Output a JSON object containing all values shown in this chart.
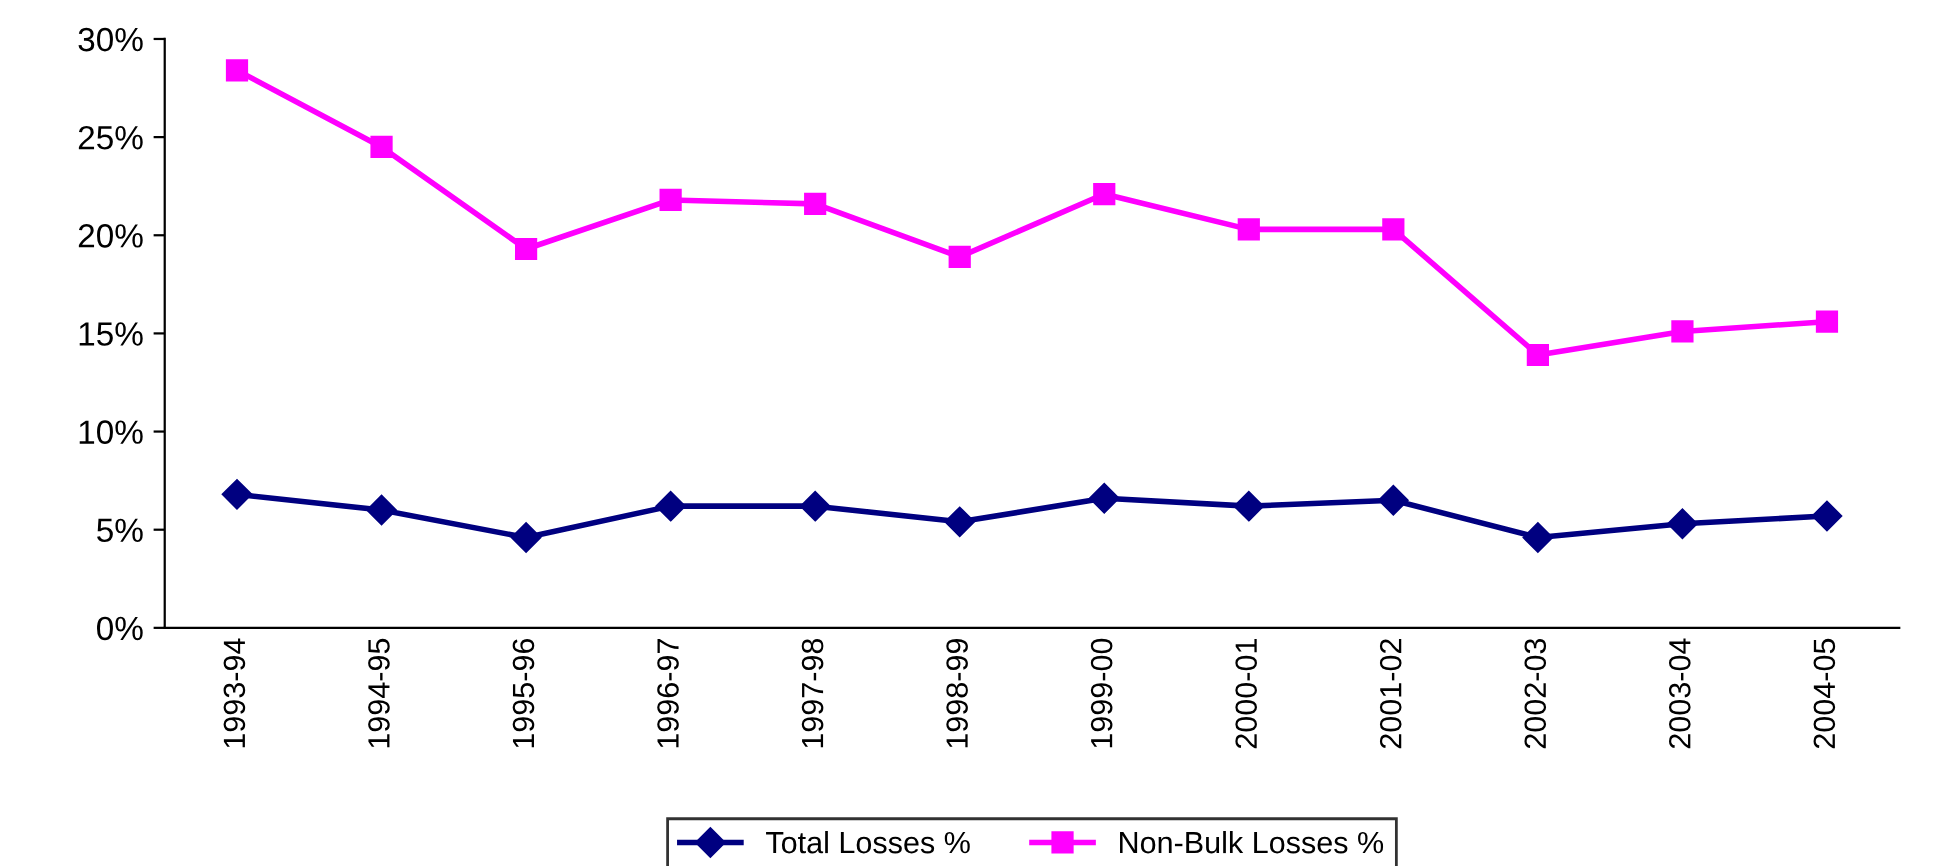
{
  "chart_data": {
    "type": "line",
    "categories": [
      "1993-94",
      "1994-95",
      "1995-96",
      "1996-97",
      "1997-98",
      "1998-99",
      "1999-00",
      "2000-01",
      "2001-02",
      "2002-03",
      "2003-04",
      "2004-05"
    ],
    "series": [
      {
        "name": "Total Losses %",
        "color": "#000080",
        "marker": "diamond",
        "values": [
          6.8,
          6.0,
          4.6,
          6.2,
          6.2,
          5.4,
          6.6,
          6.2,
          6.5,
          4.6,
          5.3,
          5.7
        ]
      },
      {
        "name": "Non-Bulk Losses %",
        "color": "#ff00ff",
        "marker": "square",
        "values": [
          28.4,
          24.5,
          19.3,
          21.8,
          21.6,
          18.9,
          22.1,
          20.3,
          20.3,
          13.9,
          15.1,
          15.6
        ]
      }
    ],
    "ylim": [
      0,
      30
    ],
    "yticks": [
      {
        "value": 0,
        "label": "0%"
      },
      {
        "value": 5,
        "label": "5%"
      },
      {
        "value": 10,
        "label": "10%"
      },
      {
        "value": 15,
        "label": "15%"
      },
      {
        "value": 20,
        "label": "20%"
      },
      {
        "value": 25,
        "label": "25%"
      },
      {
        "value": 30,
        "label": "30%"
      }
    ],
    "legend": "bottom",
    "grid": false,
    "line_style": "solid"
  }
}
